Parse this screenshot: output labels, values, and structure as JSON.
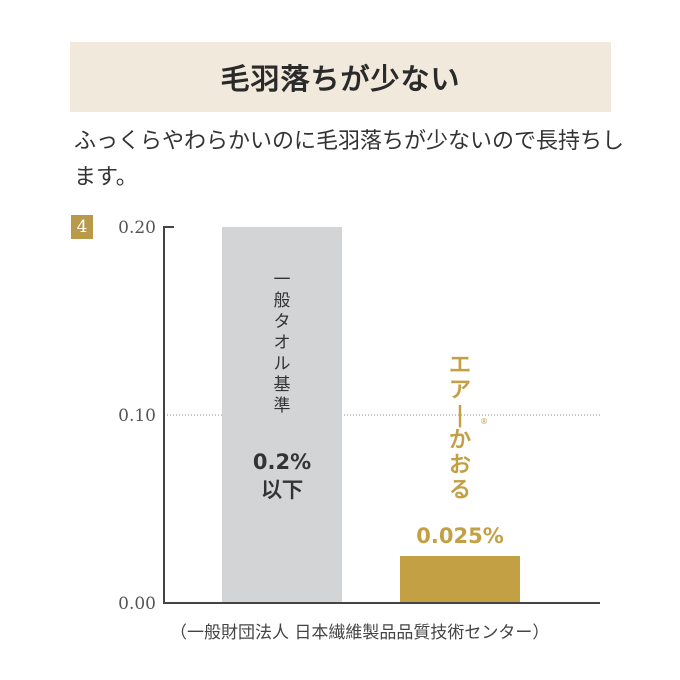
{
  "header": {
    "title": "毛羽落ちが少ない"
  },
  "description": "ふっくらやわらかいのに毛羽落ちが少ないので長持ちします。",
  "badge": "4",
  "source": "（一般財団法人 日本繊維製品品質技術センター）",
  "colors": {
    "gray_bar": "#d3d4d6",
    "gold_bar": "#c4a044",
    "header_bg": "#f0e9dc"
  },
  "chart_data": {
    "type": "bar",
    "categories": [
      "一般タオル基準",
      "エアー®かおる"
    ],
    "values": [
      0.2,
      0.025
    ],
    "value_labels": [
      "0.2%\n以下",
      "0.025%"
    ],
    "value_label_lines": [
      [
        "0.2%",
        "以下"
      ],
      [
        "0.025%"
      ]
    ],
    "ylim": [
      0,
      0.2
    ],
    "yticks": [
      "0.00",
      "0.10",
      "0.20"
    ],
    "grid": "dotted at 0.10",
    "xlabel": "",
    "ylabel": ""
  }
}
